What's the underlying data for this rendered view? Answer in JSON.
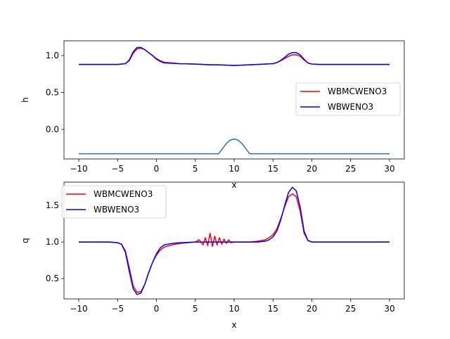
{
  "chart_data": [
    {
      "type": "line",
      "xlabel": "x",
      "ylabel": "h",
      "xlim": [
        -11.9,
        31.9
      ],
      "ylim": [
        -0.4,
        1.2
      ],
      "xticks": [
        -10,
        -5,
        0,
        5,
        10,
        15,
        20,
        25,
        30
      ],
      "yticks": [
        0.0,
        0.5,
        1.0
      ],
      "ytick_labels": [
        "0.0",
        "0.5",
        "1.0"
      ],
      "legend_position": "center-right",
      "series": [
        {
          "name": "WBMCWENO3",
          "color": "#ff0000",
          "x": [
            -10,
            -6,
            -5,
            -4,
            -3.5,
            -3,
            -2.5,
            -2,
            -1.5,
            -1,
            -0.5,
            0,
            0.5,
            1,
            2,
            3,
            5,
            6,
            7,
            8,
            9,
            10,
            11,
            12,
            13,
            14,
            15,
            15.5,
            16,
            16.5,
            17,
            17.5,
            18,
            18.5,
            19,
            19.5,
            20,
            21,
            22,
            25,
            30
          ],
          "y": [
            0.88,
            0.88,
            0.88,
            0.89,
            0.93,
            1.03,
            1.09,
            1.1,
            1.08,
            1.04,
            1.0,
            0.96,
            0.93,
            0.91,
            0.9,
            0.89,
            0.885,
            0.88,
            0.875,
            0.875,
            0.87,
            0.865,
            0.87,
            0.875,
            0.88,
            0.885,
            0.89,
            0.905,
            0.93,
            0.96,
            0.99,
            1.01,
            1.01,
            0.99,
            0.94,
            0.9,
            0.885,
            0.88,
            0.88,
            0.88,
            0.88
          ]
        },
        {
          "name": "WBWENO3",
          "color": "#0000ff",
          "x": [
            -10,
            -6,
            -5,
            -4,
            -3.5,
            -3,
            -2.5,
            -2,
            -1.5,
            -1,
            -0.5,
            0,
            0.5,
            1,
            2,
            3,
            5,
            6,
            7,
            8,
            9,
            10,
            11,
            12,
            13,
            14,
            15,
            15.5,
            16,
            16.5,
            17,
            17.5,
            18,
            18.5,
            19,
            19.5,
            20,
            21,
            22,
            25,
            30
          ],
          "y": [
            0.88,
            0.88,
            0.88,
            0.89,
            0.94,
            1.05,
            1.11,
            1.11,
            1.08,
            1.04,
            1.0,
            0.95,
            0.92,
            0.9,
            0.895,
            0.89,
            0.885,
            0.88,
            0.875,
            0.875,
            0.87,
            0.865,
            0.87,
            0.875,
            0.88,
            0.885,
            0.89,
            0.905,
            0.935,
            0.975,
            1.02,
            1.04,
            1.04,
            1.01,
            0.95,
            0.9,
            0.885,
            0.88,
            0.88,
            0.88,
            0.88
          ]
        },
        {
          "name": "",
          "color": "#1f77b4",
          "x": [
            -10,
            6,
            7,
            7.5,
            8,
            8.5,
            9,
            9.5,
            10,
            10.5,
            11,
            11.5,
            12,
            13,
            20,
            30
          ],
          "y": [
            -0.33,
            -0.33,
            -0.33,
            -0.33,
            -0.33,
            -0.26,
            -0.19,
            -0.145,
            -0.13,
            -0.145,
            -0.19,
            -0.26,
            -0.33,
            -0.33,
            -0.33,
            -0.33
          ]
        }
      ]
    },
    {
      "type": "line",
      "xlabel": "x",
      "ylabel": "q",
      "xlim": [
        -11.9,
        31.9
      ],
      "ylim": [
        0.22,
        1.82
      ],
      "xticks": [
        -10,
        -5,
        0,
        5,
        10,
        15,
        20,
        25,
        30
      ],
      "yticks": [
        0.5,
        1.0,
        1.5
      ],
      "ytick_labels": [
        "0.5",
        "1.0",
        "1.5"
      ],
      "legend_position": "upper-left",
      "series": [
        {
          "name": "WBMCWENO3",
          "color": "#ff0000",
          "x": [
            -10,
            -6,
            -5,
            -4.5,
            -4,
            -3.5,
            -3,
            -2.5,
            -2,
            -1.5,
            -1,
            -0.5,
            0,
            0.5,
            1,
            2,
            3,
            4,
            5,
            5.5,
            6,
            6.3,
            6.6,
            6.9,
            7.2,
            7.5,
            7.8,
            8.1,
            8.4,
            8.7,
            9,
            9.3,
            9.6,
            10,
            11,
            12,
            13,
            14,
            14.5,
            15,
            15.5,
            16,
            16.5,
            17,
            17.5,
            18,
            18.5,
            19,
            19.5,
            20,
            21,
            22,
            25,
            30
          ],
          "y": [
            1.0,
            1.0,
            0.99,
            0.97,
            0.88,
            0.65,
            0.4,
            0.31,
            0.32,
            0.42,
            0.58,
            0.72,
            0.82,
            0.89,
            0.93,
            0.96,
            0.98,
            0.99,
            1.0,
            1.03,
            0.96,
            1.06,
            0.95,
            1.12,
            0.94,
            1.08,
            0.96,
            1.06,
            0.97,
            1.04,
            0.98,
            1.03,
            0.99,
            1.0,
            1.0,
            1.0,
            1.01,
            1.03,
            1.06,
            1.1,
            1.18,
            1.32,
            1.48,
            1.62,
            1.66,
            1.62,
            1.42,
            1.12,
            1.02,
            1.0,
            1.0,
            1.0,
            1.0,
            1.0
          ]
        },
        {
          "name": "WBWENO3",
          "color": "#0000ff",
          "x": [
            -10,
            -6,
            -5,
            -4.5,
            -4,
            -3.5,
            -3,
            -2.5,
            -2,
            -1.5,
            -1,
            -0.5,
            0,
            0.5,
            1,
            2,
            3,
            4,
            5,
            6,
            7,
            8,
            9,
            10,
            11,
            12,
            13,
            14,
            14.5,
            15,
            15.5,
            16,
            16.5,
            17,
            17.5,
            18,
            18.5,
            19,
            19.5,
            20,
            21,
            22,
            25,
            30
          ],
          "y": [
            1.0,
            1.0,
            0.99,
            0.97,
            0.86,
            0.6,
            0.36,
            0.28,
            0.3,
            0.42,
            0.58,
            0.72,
            0.84,
            0.92,
            0.96,
            0.98,
            0.99,
            0.995,
            1.0,
            1.0,
            1.0,
            1.0,
            1.0,
            1.0,
            1.0,
            1.0,
            1.0,
            1.01,
            1.03,
            1.07,
            1.15,
            1.3,
            1.5,
            1.68,
            1.75,
            1.7,
            1.48,
            1.15,
            1.02,
            1.0,
            1.0,
            1.0,
            1.0,
            1.0
          ]
        }
      ]
    }
  ]
}
